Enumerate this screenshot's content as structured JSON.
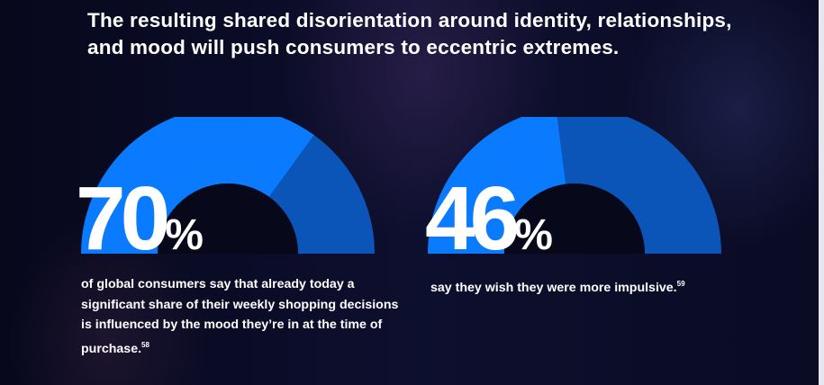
{
  "headline": "The resulting shared disorientation around identity, relationships, and mood will push consumers to eccentric extremes.",
  "chart_data": [
    {
      "type": "gauge",
      "value": 70,
      "max": 100,
      "label": "70",
      "unit": "%",
      "caption": "of global consumers say that already today a significant share of their weekly shopping decisions is influenced by the mood they’re in at the time of purchase.",
      "footnote": "58",
      "fill_color": "#0a7bff",
      "remainder_color": "#0b55b8"
    },
    {
      "type": "gauge",
      "value": 46,
      "max": 100,
      "label": "46",
      "unit": "%",
      "caption": "say they wish they were more impulsive.",
      "footnote": "59",
      "fill_color": "#0a7bff",
      "remainder_color": "#0b55b8"
    }
  ],
  "colors": {
    "background": "#0a0b24",
    "hole": "#070819"
  }
}
